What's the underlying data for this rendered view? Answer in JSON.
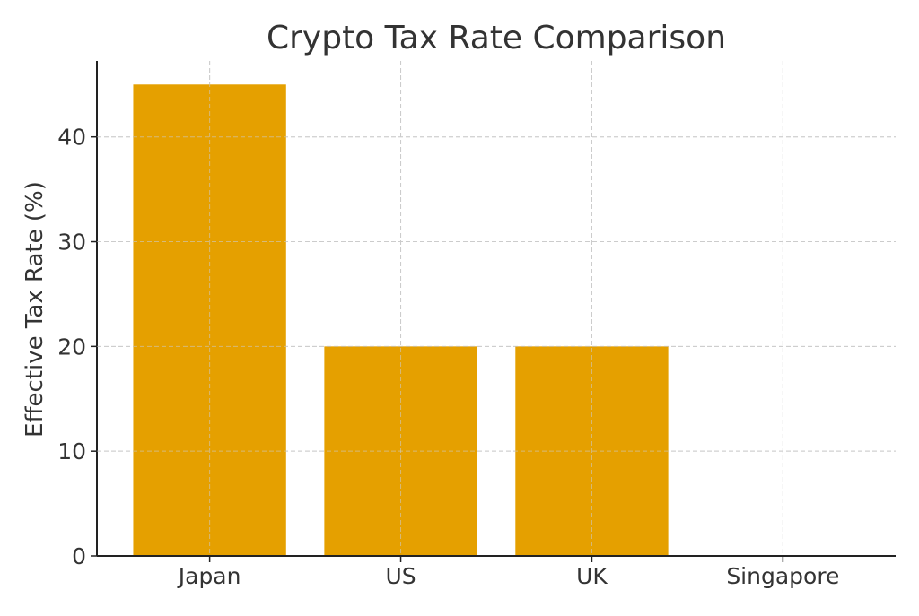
{
  "chart_data": {
    "type": "bar",
    "title": "Crypto Tax Rate Comparison",
    "xlabel": "",
    "ylabel": "Effective Tax Rate (%)",
    "categories": [
      "Japan",
      "US",
      "UK",
      "Singapore"
    ],
    "values": [
      45,
      20,
      20,
      0
    ],
    "ylim": [
      0,
      47.25
    ],
    "yticks": [
      0,
      10,
      20,
      30,
      40
    ],
    "grid": true,
    "bar_color": "#E5A000",
    "grid_color": "#cccccc",
    "axis_color": "#222222"
  }
}
